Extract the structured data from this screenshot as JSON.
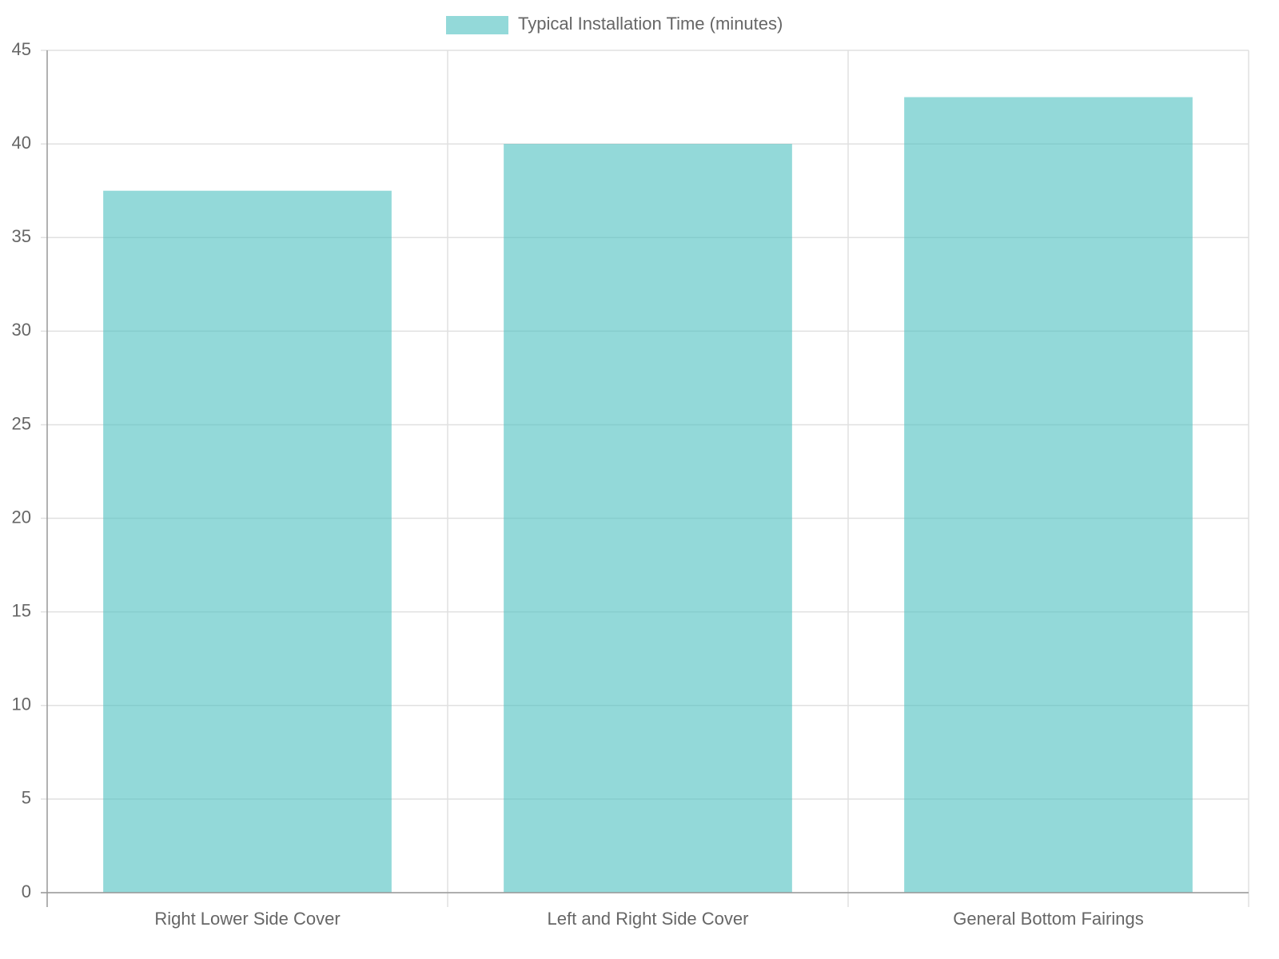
{
  "chart_data": {
    "type": "bar",
    "categories": [
      "Right Lower Side Cover",
      "Left and Right Side Cover",
      "General Bottom Fairings"
    ],
    "series": [
      {
        "name": "Typical Installation Time (minutes)",
        "color": "rgba(75, 192, 192, 0.6)",
        "values": [
          37.5,
          40,
          42.5
        ]
      }
    ],
    "ylim": [
      0,
      45
    ],
    "yticks": [
      0,
      5,
      10,
      15,
      20,
      25,
      30,
      35,
      40,
      45
    ],
    "grid": true,
    "legend": "top"
  }
}
